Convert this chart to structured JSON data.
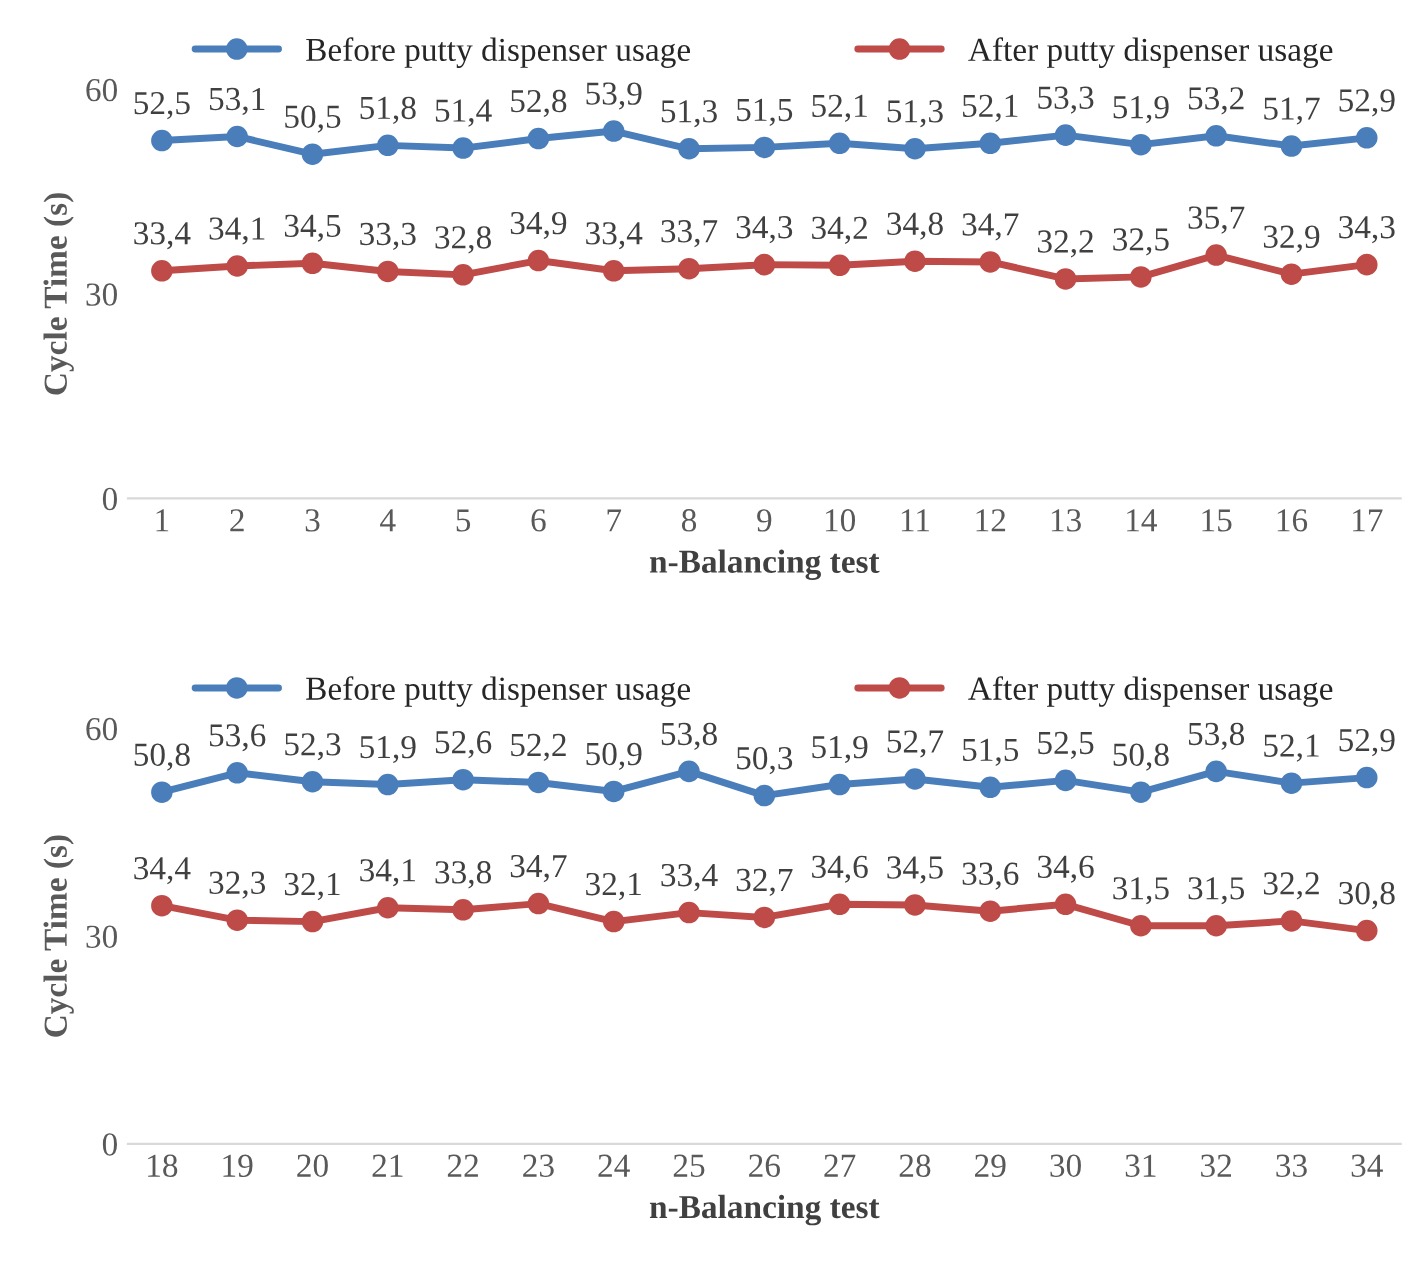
{
  "chart_data": [
    {
      "type": "line",
      "xlabel": "n-Balancing test",
      "ylabel": "Cycle Time (s)",
      "categories": [
        "1",
        "2",
        "3",
        "4",
        "5",
        "6",
        "7",
        "8",
        "9",
        "10",
        "11",
        "12",
        "13",
        "14",
        "15",
        "16",
        "17"
      ],
      "ylim": [
        0,
        60
      ],
      "yticks": [
        0,
        30,
        60
      ],
      "grid": false,
      "legend": "top",
      "marker": "circle",
      "line_style": "solid",
      "series": [
        {
          "name": "Before putty dispenser usage",
          "color": "#4a7ebb",
          "values": [
            52.5,
            53.1,
            50.5,
            51.8,
            51.4,
            52.8,
            53.9,
            51.3,
            51.5,
            52.1,
            51.3,
            52.1,
            53.3,
            51.9,
            53.2,
            51.7,
            52.9
          ],
          "value_labels": [
            "52,5",
            "53,1",
            "50,5",
            "51,8",
            "51,4",
            "52,8",
            "53,9",
            "51,3",
            "51,5",
            "52,1",
            "51,3",
            "52,1",
            "53,3",
            "51,9",
            "53,2",
            "51,7",
            "52,9"
          ]
        },
        {
          "name": "After putty dispenser usage",
          "color": "#be4b48",
          "values": [
            33.4,
            34.1,
            34.5,
            33.3,
            32.8,
            34.9,
            33.4,
            33.7,
            34.3,
            34.2,
            34.8,
            34.7,
            32.2,
            32.5,
            35.7,
            32.9,
            34.3
          ],
          "value_labels": [
            "33,4",
            "34,1",
            "34,5",
            "33,3",
            "32,8",
            "34,9",
            "33,4",
            "33,7",
            "34,3",
            "34,2",
            "34,8",
            "34,7",
            "32,2",
            "32,5",
            "35,7",
            "32,9",
            "34,3"
          ]
        }
      ]
    },
    {
      "type": "line",
      "xlabel": "n-Balancing test",
      "ylabel": "Cycle Time (s)",
      "categories": [
        "18",
        "19",
        "20",
        "21",
        "22",
        "23",
        "24",
        "25",
        "26",
        "27",
        "28",
        "29",
        "30",
        "31",
        "32",
        "33",
        "34"
      ],
      "ylim": [
        0,
        60
      ],
      "yticks": [
        0,
        30,
        60
      ],
      "grid": false,
      "legend": "top",
      "marker": "circle",
      "line_style": "solid",
      "series": [
        {
          "name": "Before putty dispenser usage",
          "color": "#4a7ebb",
          "values": [
            50.8,
            53.6,
            52.3,
            51.9,
            52.6,
            52.2,
            50.9,
            53.8,
            50.3,
            51.9,
            52.7,
            51.5,
            52.5,
            50.8,
            53.8,
            52.1,
            52.9
          ],
          "value_labels": [
            "50,8",
            "53,6",
            "52,3",
            "51,9",
            "52,6",
            "52,2",
            "50,9",
            "53,8",
            "50,3",
            "51,9",
            "52,7",
            "51,5",
            "52,5",
            "50,8",
            "53,8",
            "52,1",
            "52,9"
          ]
        },
        {
          "name": "After putty dispenser usage",
          "color": "#be4b48",
          "values": [
            34.4,
            32.3,
            32.1,
            34.1,
            33.8,
            34.7,
            32.1,
            33.4,
            32.7,
            34.6,
            34.5,
            33.6,
            34.6,
            31.5,
            31.5,
            32.2,
            30.8
          ],
          "value_labels": [
            "34,4",
            "32,3",
            "32,1",
            "34,1",
            "33,8",
            "34,7",
            "32,1",
            "33,4",
            "32,7",
            "34,6",
            "34,5",
            "33,6",
            "34,6",
            "31,5",
            "31,5",
            "32,2",
            "30,8"
          ]
        }
      ]
    }
  ]
}
